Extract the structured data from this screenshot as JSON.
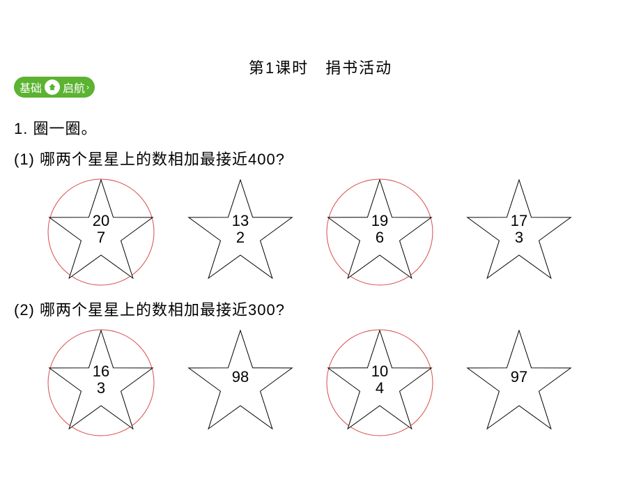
{
  "title": "第1课时　捐书活动",
  "badge": {
    "left": "基础",
    "right": "启航"
  },
  "q1": {
    "label": "1. 圈一圈。"
  },
  "sub1": {
    "label": "(1)  哪两个星星上的数相加最接近400?",
    "stars": [
      {
        "line1": "20",
        "line2": "7",
        "circled": true
      },
      {
        "line1": "13",
        "line2": "2",
        "circled": false
      },
      {
        "line1": "19",
        "line2": "6",
        "circled": true
      },
      {
        "line1": "17",
        "line2": "3",
        "circled": false
      }
    ]
  },
  "sub2": {
    "label": "(2)  哪两个星星上的数相加最接近300?",
    "stars": [
      {
        "line1": "16",
        "line2": "3",
        "circled": true
      },
      {
        "line1": "98",
        "line2": "",
        "circled": false
      },
      {
        "line1": "10",
        "line2": "4",
        "circled": true
      },
      {
        "line1": "97",
        "line2": "",
        "circled": false
      }
    ]
  },
  "colors": {
    "star_stroke": "#000000",
    "star_fill": "#ffffff",
    "circle_stroke": "#d94a4a",
    "badge_bg": "#5bb331"
  }
}
